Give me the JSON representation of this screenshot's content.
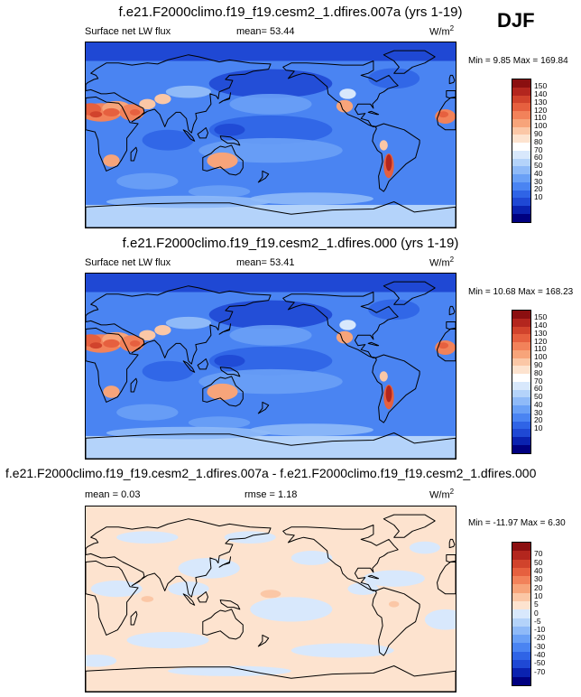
{
  "season": "DJF",
  "colors": {
    "flux_scale": [
      "#000080",
      "#0a22b0",
      "#1f48d4",
      "#2f64e6",
      "#4a84f2",
      "#6aa0f6",
      "#8fbaf8",
      "#b4d3fa",
      "#d8e8fc",
      "#ffffff",
      "#fde3cf",
      "#fbc7a6",
      "#f7a47a",
      "#f2825a",
      "#e6603f",
      "#d1432c",
      "#b3261e",
      "#8b0f10"
    ],
    "diff_scale": [
      "#000080",
      "#0a22b0",
      "#1f48d4",
      "#2f64e6",
      "#4a84f2",
      "#6aa0f6",
      "#8fbaf8",
      "#b4d3fa",
      "#d8e8fc",
      "#fde3cf",
      "#fbc7a6",
      "#f7a47a",
      "#f2825a",
      "#e6603f",
      "#d1432c",
      "#b3261e",
      "#8b0f10"
    ],
    "continent_line": "#000000"
  },
  "chart_data": [
    {
      "type": "heatmap",
      "title": "f.e21.F2000climo.f19_f19.cesm2_1.dfires.007a (yrs 1-19)",
      "variable": "Surface net LW flux",
      "mean_label": "mean=",
      "mean": "53.44",
      "units": "W/m",
      "units_sup": "2",
      "min_label": "Min =",
      "min": "9.85",
      "max_label": "Max =",
      "max": "169.84",
      "levels": [
        "150",
        "140",
        "130",
        "120",
        "110",
        "100",
        "90",
        "80",
        "70",
        "60",
        "50",
        "40",
        "30",
        "20",
        "10"
      ],
      "map": "longitude 0-360 world map with continent outlines; high LW flux (100-160) over Sahara, Arabia, Australia, southern Africa, Andes/Argentina, Mexico; low (10-50) over tropical and high-latitude oceans and Antarctica"
    },
    {
      "type": "heatmap",
      "title": "f.e21.F2000climo.f19_f19.cesm2_1.dfires.000 (yrs 1-19)",
      "variable": "Surface net LW flux",
      "mean_label": "mean=",
      "mean": "53.41",
      "units": "W/m",
      "units_sup": "2",
      "min_label": "Min =",
      "min": "10.68",
      "max_label": "Max =",
      "max": "168.23",
      "levels": [
        "150",
        "140",
        "130",
        "120",
        "110",
        "100",
        "90",
        "80",
        "70",
        "60",
        "50",
        "40",
        "30",
        "20",
        "10"
      ],
      "map": "longitude 0-360 world map; pattern nearly identical to the 007a case"
    },
    {
      "type": "heatmap",
      "title": "f.e21.F2000climo.f19_f19.cesm2_1.dfires.007a - f.e21.F2000climo.f19_f19.cesm2_1.dfires.000",
      "mean_label": "mean =",
      "mean": "0.03",
      "rmse_label": "rmse =",
      "rmse": "1.18",
      "units": "W/m",
      "units_sup": "2",
      "min_label": "Min =",
      "min": "-11.97",
      "max_label": "Max =",
      "max": "6.30",
      "levels": [
        "70",
        "50",
        "40",
        "30",
        "20",
        "10",
        "5",
        "0",
        "-5",
        "-10",
        "-20",
        "-30",
        "-40",
        "-50",
        "-70"
      ],
      "map": "difference field, mostly within -5..5 (pale blue and pale orange patches)"
    }
  ]
}
